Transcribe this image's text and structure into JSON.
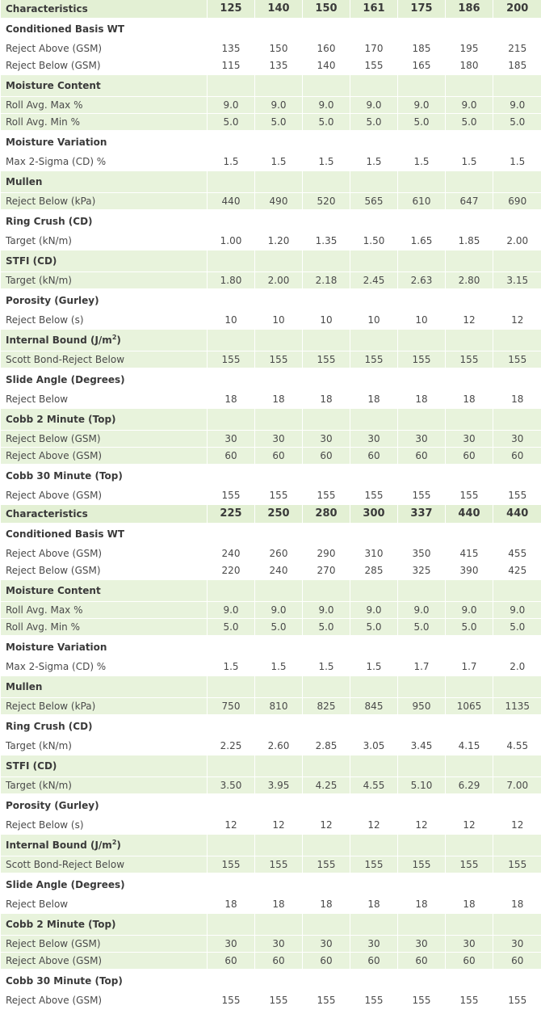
{
  "tables": [
    {
      "header": {
        "label": "Characteristics",
        "columns": [
          "125",
          "140",
          "150",
          "161",
          "175",
          "186",
          "200"
        ]
      },
      "groups": [
        {
          "name": "Conditioned Basis WT",
          "rows": [
            {
              "label": "Reject Above (GSM)",
              "values": [
                "135",
                "150",
                "160",
                "170",
                "185",
                "195",
                "215"
              ]
            },
            {
              "label": "Reject Below (GSM)",
              "values": [
                "115",
                "135",
                "140",
                "155",
                "165",
                "180",
                "185"
              ]
            }
          ]
        },
        {
          "name": "Moisture Content",
          "rows": [
            {
              "label": "Roll Avg. Max %",
              "values": [
                "9.0",
                "9.0",
                "9.0",
                "9.0",
                "9.0",
                "9.0",
                "9.0"
              ]
            },
            {
              "label": "Roll Avg. Min %",
              "values": [
                "5.0",
                "5.0",
                "5.0",
                "5.0",
                "5.0",
                "5.0",
                "5.0"
              ]
            }
          ]
        },
        {
          "name": "Moisture Variation",
          "rows": [
            {
              "label": "Max 2-Sigma (CD) %",
              "values": [
                "1.5",
                "1.5",
                "1.5",
                "1.5",
                "1.5",
                "1.5",
                "1.5"
              ]
            }
          ]
        },
        {
          "name": "Mullen",
          "rows": [
            {
              "label": "Reject Below (kPa)",
              "values": [
                "440",
                "490",
                "520",
                "565",
                "610",
                "647",
                "690"
              ]
            }
          ]
        },
        {
          "name": "Ring Crush (CD)",
          "rows": [
            {
              "label": "Target (kN/m)",
              "values": [
                "1.00",
                "1.20",
                "1.35",
                "1.50",
                "1.65",
                "1.85",
                "2.00"
              ]
            }
          ]
        },
        {
          "name": "STFI (CD)",
          "rows": [
            {
              "label": "Target (kN/m)",
              "values": [
                "1.80",
                "2.00",
                "2.18",
                "2.45",
                "2.63",
                "2.80",
                "3.15"
              ]
            }
          ]
        },
        {
          "name": "Porosity (Gurley)",
          "rows": [
            {
              "label": "Reject Below (s)",
              "values": [
                "10",
                "10",
                "10",
                "10",
                "10",
                "12",
                "12"
              ]
            }
          ]
        },
        {
          "name": "Internal Bound (J/m",
          "name_sup": "2",
          "name_end": ")",
          "rows": [
            {
              "label": "Scott Bond-Reject Below",
              "values": [
                "155",
                "155",
                "155",
                "155",
                "155",
                "155",
                "155"
              ]
            }
          ]
        },
        {
          "name": "Slide Angle (Degrees)",
          "rows": [
            {
              "label": "Reject Below",
              "values": [
                "18",
                "18",
                "18",
                "18",
                "18",
                "18",
                "18"
              ]
            }
          ]
        },
        {
          "name": "Cobb 2 Minute (Top)",
          "rows": [
            {
              "label": "Reject Below (GSM)",
              "values": [
                "30",
                "30",
                "30",
                "30",
                "30",
                "30",
                "30"
              ]
            },
            {
              "label": "Reject Above (GSM)",
              "values": [
                "60",
                "60",
                "60",
                "60",
                "60",
                "60",
                "60"
              ]
            }
          ]
        },
        {
          "name": "Cobb 30 Minute (Top)",
          "rows": [
            {
              "label": "Reject Above (GSM)",
              "values": [
                "155",
                "155",
                "155",
                "155",
                "155",
                "155",
                "155"
              ]
            }
          ]
        }
      ]
    },
    {
      "header": {
        "label": "Characteristics",
        "columns": [
          "225",
          "250",
          "280",
          "300",
          "337",
          "440",
          "440"
        ]
      },
      "groups": [
        {
          "name": "Conditioned Basis WT",
          "rows": [
            {
              "label": "Reject Above (GSM)",
              "values": [
                "240",
                "260",
                "290",
                "310",
                "350",
                "415",
                "455"
              ]
            },
            {
              "label": "Reject Below (GSM)",
              "values": [
                "220",
                "240",
                "270",
                "285",
                "325",
                "390",
                "425"
              ]
            }
          ]
        },
        {
          "name": "Moisture Content",
          "rows": [
            {
              "label": "Roll Avg. Max %",
              "values": [
                "9.0",
                "9.0",
                "9.0",
                "9.0",
                "9.0",
                "9.0",
                "9.0"
              ]
            },
            {
              "label": "Roll Avg. Min %",
              "values": [
                "5.0",
                "5.0",
                "5.0",
                "5.0",
                "5.0",
                "5.0",
                "5.0"
              ]
            }
          ]
        },
        {
          "name": "Moisture Variation",
          "rows": [
            {
              "label": "Max 2-Sigma (CD) %",
              "values": [
                "1.5",
                "1.5",
                "1.5",
                "1.5",
                "1.7",
                "1.7",
                "2.0"
              ]
            }
          ]
        },
        {
          "name": "Mullen",
          "rows": [
            {
              "label": "Reject Below (kPa)",
              "values": [
                "750",
                "810",
                "825",
                "845",
                "950",
                "1065",
                "1135"
              ]
            }
          ]
        },
        {
          "name": "Ring Crush (CD)",
          "rows": [
            {
              "label": "Target (kN/m)",
              "values": [
                "2.25",
                "2.60",
                "2.85",
                "3.05",
                "3.45",
                "4.15",
                "4.55"
              ]
            }
          ]
        },
        {
          "name": "STFI (CD)",
          "rows": [
            {
              "label": "Target (kN/m)",
              "values": [
                "3.50",
                "3.95",
                "4.25",
                "4.55",
                "5.10",
                "6.29",
                "7.00"
              ]
            }
          ]
        },
        {
          "name": "Porosity (Gurley)",
          "rows": [
            {
              "label": "Reject Below (s)",
              "values": [
                "12",
                "12",
                "12",
                "12",
                "12",
                "12",
                "12"
              ]
            }
          ]
        },
        {
          "name": "Internal Bound (J/m",
          "name_sup": "2",
          "name_end": ")",
          "rows": [
            {
              "label": "Scott Bond-Reject Below",
              "values": [
                "155",
                "155",
                "155",
                "155",
                "155",
                "155",
                "155"
              ]
            }
          ]
        },
        {
          "name": "Slide Angle (Degrees)",
          "rows": [
            {
              "label": "Reject Below",
              "values": [
                "18",
                "18",
                "18",
                "18",
                "18",
                "18",
                "18"
              ]
            }
          ]
        },
        {
          "name": "Cobb 2 Minute (Top)",
          "rows": [
            {
              "label": "Reject Below (GSM)",
              "values": [
                "30",
                "30",
                "30",
                "30",
                "30",
                "30",
                "30"
              ]
            },
            {
              "label": "Reject Above (GSM)",
              "values": [
                "60",
                "60",
                "60",
                "60",
                "60",
                "60",
                "60"
              ]
            }
          ]
        },
        {
          "name": "Cobb 30 Minute (Top)",
          "rows": [
            {
              "label": "Reject Above (GSM)",
              "values": [
                "155",
                "155",
                "155",
                "155",
                "155",
                "155",
                "155"
              ]
            }
          ]
        }
      ]
    }
  ],
  "colors": {
    "header_bg": "#e3f0d4",
    "shaded_row_bg": "#e8f3dc",
    "text": "#4a4a4a",
    "divider": "#ffffff"
  }
}
